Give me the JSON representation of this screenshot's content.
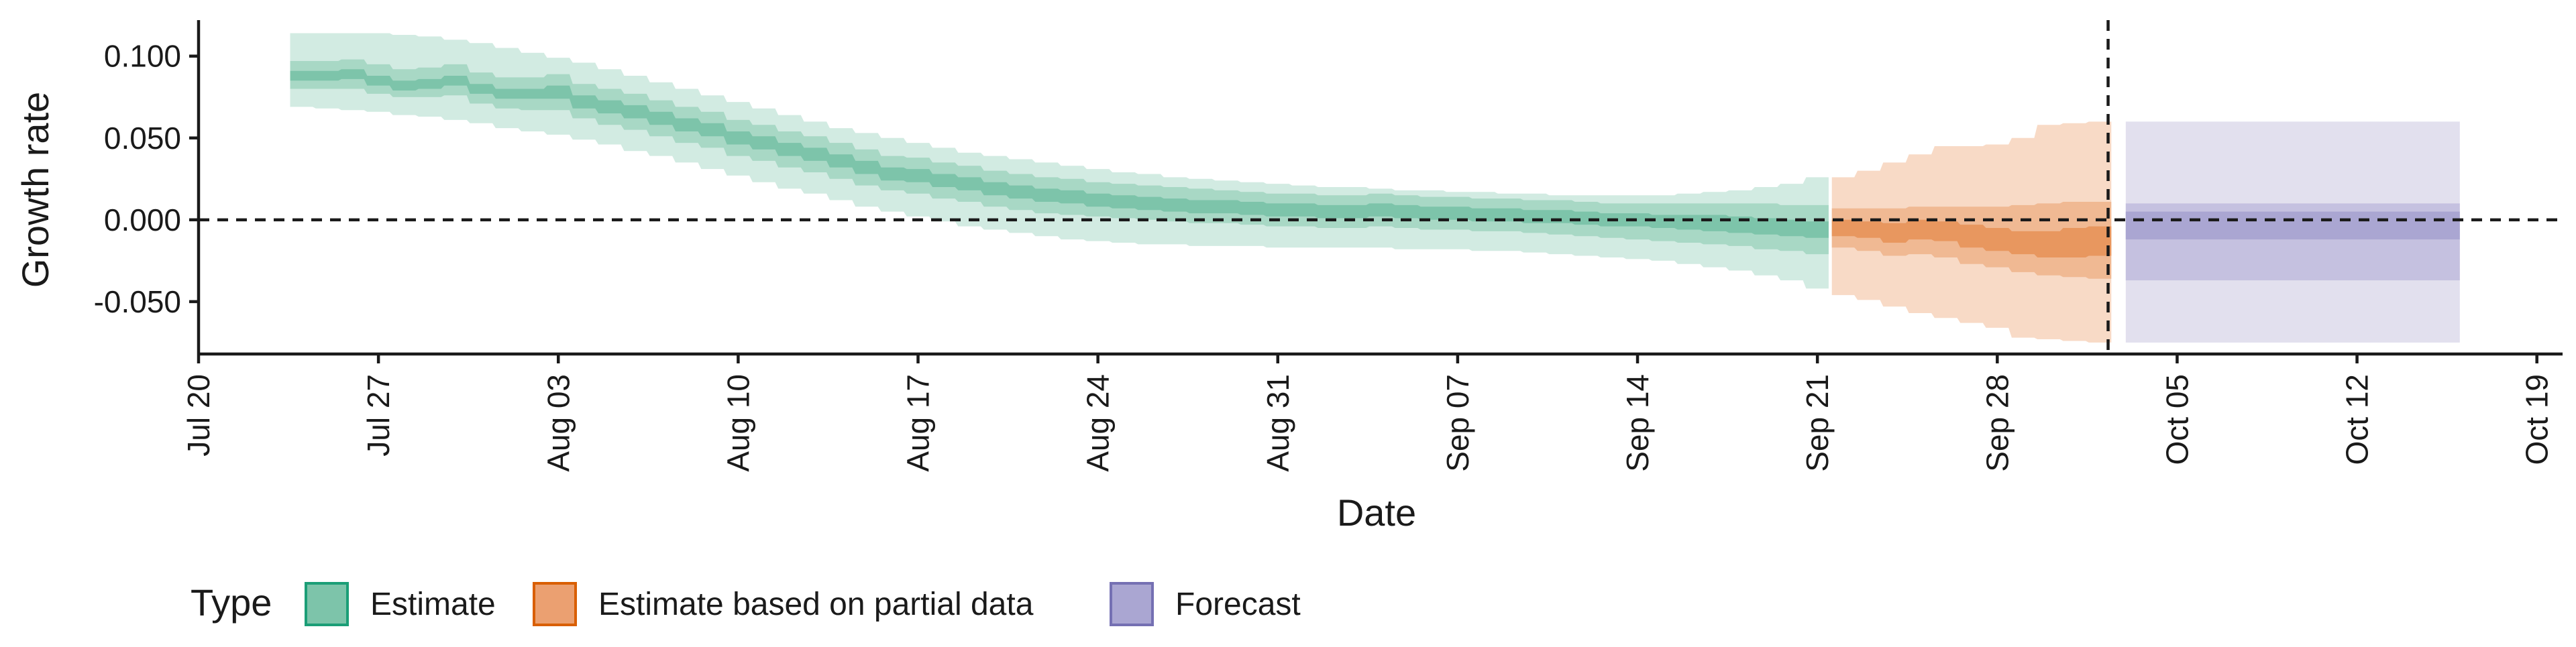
{
  "chart_data": {
    "type": "area",
    "xlabel": "Date",
    "ylabel": "Growth rate",
    "x_range": [
      "2020-07-20",
      "2020-10-20"
    ],
    "ylim": [
      -0.082,
      0.122
    ],
    "y_ticks": [
      -0.05,
      0.0,
      0.05,
      0.1
    ],
    "y_tick_labels": [
      "-0.050",
      "0.000",
      "0.050",
      "0.100"
    ],
    "x_ticks": [
      "2020-07-20",
      "2020-07-27",
      "2020-08-03",
      "2020-08-10",
      "2020-08-17",
      "2020-08-24",
      "2020-08-31",
      "2020-09-07",
      "2020-09-14",
      "2020-09-21",
      "2020-09-28",
      "2020-10-05",
      "2020-10-12",
      "2020-10-19"
    ],
    "x_tick_labels": [
      "Jul 20",
      "Jul 27",
      "Aug 03",
      "Aug 10",
      "Aug 17",
      "Aug 24",
      "Aug 31",
      "Sep 07",
      "Sep 14",
      "Sep 21",
      "Sep 28",
      "Oct 05",
      "Oct 12",
      "Oct 19"
    ],
    "reference_lines": {
      "horizontal_y": 0.0,
      "vertical_date": "2020-10-02"
    },
    "grid": false,
    "legend": {
      "title": "Type",
      "position": "bottom-left",
      "entries": [
        {
          "label": "Estimate",
          "fill": "#7dc4aa",
          "border": "#1b9e77"
        },
        {
          "label": "Estimate based on partial data",
          "fill": "#eba071",
          "border": "#d95f02"
        },
        {
          "label": "Forecast",
          "fill": "#aaa6d2",
          "border": "#7570b3"
        }
      ]
    },
    "series": [
      {
        "name": "Estimate",
        "colors": {
          "outer": "#d2ebe2",
          "middle": "#a8d8c5",
          "inner": "#7dc4aa"
        },
        "x": [
          "2020-07-24",
          "2020-07-25",
          "2020-07-26",
          "2020-07-27",
          "2020-07-28",
          "2020-07-29",
          "2020-07-30",
          "2020-07-31",
          "2020-08-01",
          "2020-08-02",
          "2020-08-03",
          "2020-08-04",
          "2020-08-05",
          "2020-08-06",
          "2020-08-07",
          "2020-08-08",
          "2020-08-09",
          "2020-08-10",
          "2020-08-11",
          "2020-08-12",
          "2020-08-13",
          "2020-08-14",
          "2020-08-15",
          "2020-08-16",
          "2020-08-17",
          "2020-08-18",
          "2020-08-19",
          "2020-08-20",
          "2020-08-21",
          "2020-08-22",
          "2020-08-23",
          "2020-08-24",
          "2020-08-25",
          "2020-08-26",
          "2020-08-27",
          "2020-08-28",
          "2020-08-29",
          "2020-08-30",
          "2020-08-31",
          "2020-09-01",
          "2020-09-02",
          "2020-09-03",
          "2020-09-04",
          "2020-09-05",
          "2020-09-06",
          "2020-09-07",
          "2020-09-08",
          "2020-09-09",
          "2020-09-10",
          "2020-09-11",
          "2020-09-12",
          "2020-09-13",
          "2020-09-14",
          "2020-09-15",
          "2020-09-16",
          "2020-09-17",
          "2020-09-18",
          "2020-09-19",
          "2020-09-20",
          "2020-09-21"
        ],
        "median": [
          0.088,
          0.088,
          0.089,
          0.085,
          0.082,
          0.083,
          0.085,
          0.08,
          0.077,
          0.077,
          0.078,
          0.072,
          0.069,
          0.066,
          0.062,
          0.058,
          0.055,
          0.05,
          0.047,
          0.043,
          0.04,
          0.036,
          0.032,
          0.028,
          0.027,
          0.024,
          0.022,
          0.019,
          0.017,
          0.015,
          0.014,
          0.012,
          0.011,
          0.01,
          0.009,
          0.008,
          0.008,
          0.007,
          0.006,
          0.006,
          0.005,
          0.005,
          0.006,
          0.005,
          0.004,
          0.004,
          0.003,
          0.003,
          0.002,
          0.002,
          0.001,
          0.0,
          0.0,
          -0.001,
          -0.001,
          -0.002,
          -0.003,
          -0.004,
          -0.005,
          -0.006
        ],
        "lower_90": [
          0.069,
          0.068,
          0.067,
          0.066,
          0.064,
          0.063,
          0.061,
          0.059,
          0.056,
          0.054,
          0.052,
          0.049,
          0.046,
          0.042,
          0.039,
          0.035,
          0.031,
          0.027,
          0.023,
          0.019,
          0.016,
          0.012,
          0.008,
          0.005,
          0.002,
          -0.001,
          -0.004,
          -0.006,
          -0.008,
          -0.01,
          -0.012,
          -0.013,
          -0.014,
          -0.015,
          -0.015,
          -0.016,
          -0.016,
          -0.016,
          -0.017,
          -0.017,
          -0.017,
          -0.017,
          -0.017,
          -0.018,
          -0.018,
          -0.018,
          -0.019,
          -0.019,
          -0.02,
          -0.021,
          -0.022,
          -0.023,
          -0.024,
          -0.025,
          -0.027,
          -0.029,
          -0.031,
          -0.034,
          -0.037,
          -0.042
        ],
        "upper_90": [
          0.114,
          0.114,
          0.114,
          0.114,
          0.113,
          0.112,
          0.11,
          0.108,
          0.105,
          0.102,
          0.099,
          0.096,
          0.092,
          0.088,
          0.084,
          0.08,
          0.076,
          0.072,
          0.068,
          0.064,
          0.06,
          0.056,
          0.053,
          0.05,
          0.047,
          0.044,
          0.041,
          0.039,
          0.037,
          0.035,
          0.033,
          0.031,
          0.029,
          0.028,
          0.026,
          0.025,
          0.024,
          0.023,
          0.022,
          0.021,
          0.02,
          0.02,
          0.019,
          0.018,
          0.018,
          0.017,
          0.017,
          0.016,
          0.016,
          0.015,
          0.015,
          0.015,
          0.015,
          0.015,
          0.016,
          0.017,
          0.018,
          0.02,
          0.022,
          0.026
        ],
        "lower_50": [
          0.08,
          0.08,
          0.08,
          0.077,
          0.075,
          0.075,
          0.076,
          0.071,
          0.068,
          0.067,
          0.067,
          0.062,
          0.058,
          0.055,
          0.051,
          0.047,
          0.044,
          0.039,
          0.036,
          0.032,
          0.029,
          0.025,
          0.021,
          0.018,
          0.016,
          0.013,
          0.011,
          0.008,
          0.006,
          0.004,
          0.003,
          0.002,
          0.001,
          0.0,
          -0.001,
          -0.002,
          -0.002,
          -0.003,
          -0.004,
          -0.004,
          -0.005,
          -0.005,
          -0.004,
          -0.005,
          -0.006,
          -0.006,
          -0.007,
          -0.007,
          -0.008,
          -0.009,
          -0.01,
          -0.011,
          -0.012,
          -0.013,
          -0.014,
          -0.015,
          -0.016,
          -0.018,
          -0.019,
          -0.021
        ],
        "upper_50": [
          0.097,
          0.097,
          0.098,
          0.095,
          0.092,
          0.093,
          0.095,
          0.09,
          0.087,
          0.087,
          0.089,
          0.083,
          0.08,
          0.077,
          0.073,
          0.069,
          0.066,
          0.061,
          0.058,
          0.054,
          0.051,
          0.047,
          0.043,
          0.039,
          0.038,
          0.035,
          0.033,
          0.03,
          0.028,
          0.026,
          0.025,
          0.023,
          0.022,
          0.021,
          0.02,
          0.019,
          0.018,
          0.017,
          0.016,
          0.016,
          0.015,
          0.015,
          0.016,
          0.015,
          0.014,
          0.014,
          0.013,
          0.013,
          0.012,
          0.012,
          0.011,
          0.01,
          0.01,
          0.01,
          0.01,
          0.01,
          0.01,
          0.01,
          0.009,
          0.009
        ],
        "lower_20": [
          0.085,
          0.085,
          0.086,
          0.082,
          0.079,
          0.08,
          0.082,
          0.077,
          0.074,
          0.074,
          0.074,
          0.068,
          0.065,
          0.062,
          0.058,
          0.054,
          0.051,
          0.046,
          0.043,
          0.039,
          0.036,
          0.032,
          0.028,
          0.024,
          0.023,
          0.02,
          0.018,
          0.015,
          0.013,
          0.011,
          0.01,
          0.008,
          0.007,
          0.006,
          0.005,
          0.004,
          0.004,
          0.003,
          0.002,
          0.002,
          0.001,
          0.001,
          0.002,
          0.001,
          0.0,
          0.0,
          -0.001,
          -0.001,
          -0.002,
          -0.002,
          -0.003,
          -0.004,
          -0.004,
          -0.005,
          -0.006,
          -0.007,
          -0.008,
          -0.009,
          -0.01,
          -0.011
        ],
        "upper_20": [
          0.091,
          0.091,
          0.092,
          0.088,
          0.085,
          0.086,
          0.088,
          0.083,
          0.08,
          0.08,
          0.082,
          0.076,
          0.073,
          0.07,
          0.066,
          0.062,
          0.059,
          0.054,
          0.051,
          0.047,
          0.044,
          0.04,
          0.036,
          0.032,
          0.031,
          0.028,
          0.026,
          0.023,
          0.021,
          0.019,
          0.018,
          0.016,
          0.015,
          0.014,
          0.013,
          0.012,
          0.012,
          0.011,
          0.01,
          0.01,
          0.009,
          0.009,
          0.01,
          0.009,
          0.008,
          0.008,
          0.007,
          0.007,
          0.006,
          0.006,
          0.005,
          0.004,
          0.004,
          0.003,
          0.003,
          0.003,
          0.002,
          0.001,
          0.0,
          -0.001
        ]
      },
      {
        "name": "Estimate based on partial data",
        "colors": {
          "outer": "#f8dac6",
          "middle": "#f0b993",
          "inner": "#e8975f"
        },
        "x": [
          "2020-09-22",
          "2020-09-23",
          "2020-09-24",
          "2020-09-25",
          "2020-09-26",
          "2020-09-27",
          "2020-09-28",
          "2020-09-29",
          "2020-09-30",
          "2020-10-01",
          "2020-10-02"
        ],
        "median": [
          -0.005,
          -0.006,
          -0.008,
          -0.006,
          -0.007,
          -0.01,
          -0.012,
          -0.014,
          -0.015,
          -0.014,
          -0.013
        ],
        "lower_90": [
          -0.046,
          -0.049,
          -0.053,
          -0.057,
          -0.06,
          -0.063,
          -0.066,
          -0.072,
          -0.073,
          -0.074,
          -0.075
        ],
        "upper_90": [
          0.026,
          0.03,
          0.035,
          0.04,
          0.045,
          0.045,
          0.046,
          0.05,
          0.058,
          0.059,
          0.06
        ],
        "lower_50": [
          -0.017,
          -0.019,
          -0.022,
          -0.021,
          -0.023,
          -0.027,
          -0.029,
          -0.032,
          -0.034,
          -0.035,
          -0.036
        ],
        "upper_50": [
          0.007,
          0.007,
          0.007,
          0.008,
          0.008,
          0.008,
          0.008,
          0.009,
          0.01,
          0.011,
          0.011
        ],
        "lower_20": [
          -0.01,
          -0.011,
          -0.014,
          -0.012,
          -0.013,
          -0.017,
          -0.019,
          -0.021,
          -0.023,
          -0.023,
          -0.022
        ],
        "upper_20": [
          0.0,
          -0.001,
          -0.002,
          0.0,
          -0.001,
          -0.003,
          -0.005,
          -0.007,
          -0.007,
          -0.005,
          -0.004
        ]
      },
      {
        "name": "Forecast",
        "colors": {
          "outer": "#e2e0ee",
          "middle": "#c5c1e0",
          "inner": "#aaa6d2"
        },
        "x": [
          "2020-10-03",
          "2020-10-16"
        ],
        "median": [
          -0.001,
          -0.001
        ],
        "lower_90": [
          -0.075,
          -0.075
        ],
        "upper_90": [
          0.06,
          0.06
        ],
        "lower_50": [
          -0.037,
          -0.037
        ],
        "upper_50": [
          0.01,
          0.01
        ],
        "lower_20": [
          -0.012,
          -0.012
        ],
        "upper_20": [
          0.005,
          0.005
        ]
      }
    ]
  }
}
